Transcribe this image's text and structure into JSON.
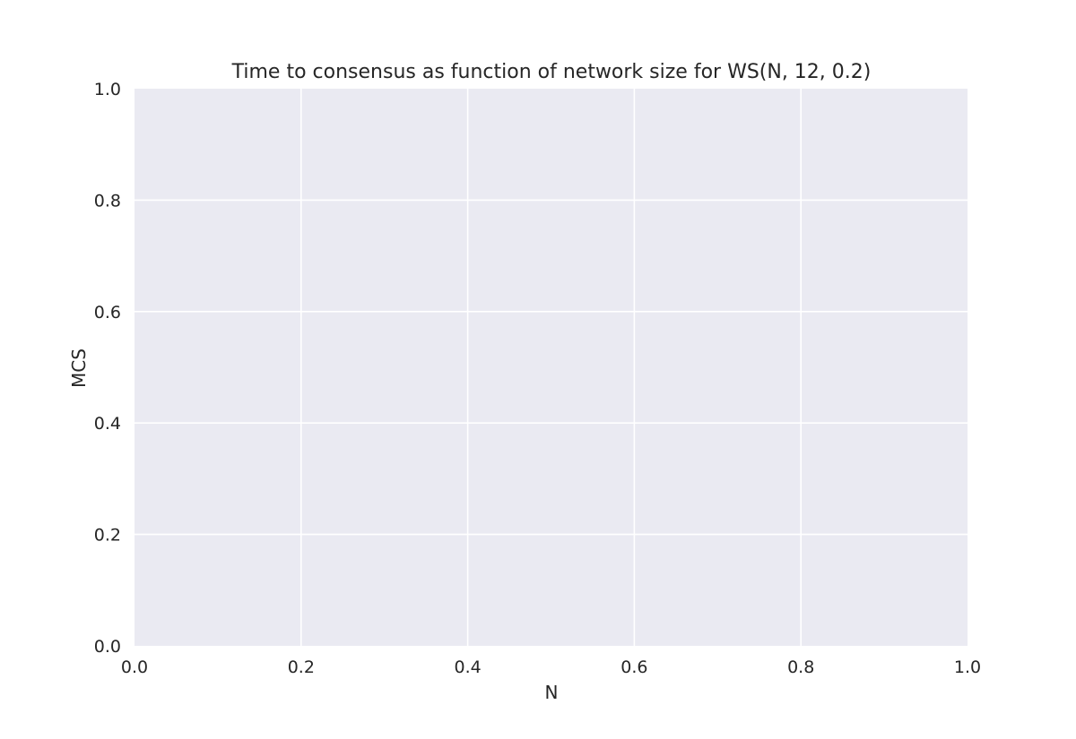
{
  "chart_data": {
    "type": "line",
    "title": "Time to consensus as function of network size for WS(N, 12, 0.2)",
    "xlabel": "N",
    "ylabel": "MCS",
    "xlim": [
      0.0,
      1.0
    ],
    "ylim": [
      0.0,
      1.0
    ],
    "x_ticks": [
      "0.0",
      "0.2",
      "0.4",
      "0.6",
      "0.8",
      "1.0"
    ],
    "y_ticks": [
      "0.0",
      "0.2",
      "0.4",
      "0.6",
      "0.8",
      "1.0"
    ],
    "grid": true,
    "series": [],
    "colors": {
      "plot_background": "#eaeaf2",
      "grid": "#ffffff",
      "text": "#262626"
    }
  }
}
